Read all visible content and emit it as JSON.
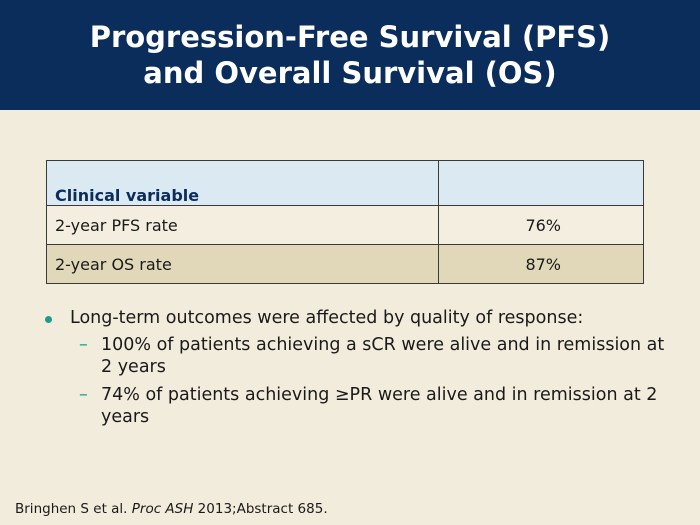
{
  "slide": {
    "title_line1": "Progression-Free Survival (PFS)",
    "title_line2": "and Overall Survival (OS)"
  },
  "table": {
    "headers": [
      "Clinical variable",
      ""
    ],
    "rows": [
      {
        "label": "2-year PFS rate",
        "value": "76%"
      },
      {
        "label": "2-year OS rate",
        "value": "87%"
      }
    ]
  },
  "bullets": {
    "main": "Long-term outcomes were affected by quality of response:",
    "sub": [
      "100% of patients achieving a sCR were alive and in remission at 2 years",
      "74% of patients achieving ≥PR were alive and in remission at 2 years"
    ],
    "dash": "–"
  },
  "citation": {
    "authors": "Bringhen S et al. ",
    "journal": "Proc ASH",
    "rest": " 2013;Abstract 685."
  },
  "colors": {
    "header_bg": "#0b2d5b",
    "slide_bg": "#f2ecdc",
    "table_header_bg": "#dbe9f3",
    "row_alt_bg": "#e0d8b8",
    "accent": "#1b9d8a"
  }
}
